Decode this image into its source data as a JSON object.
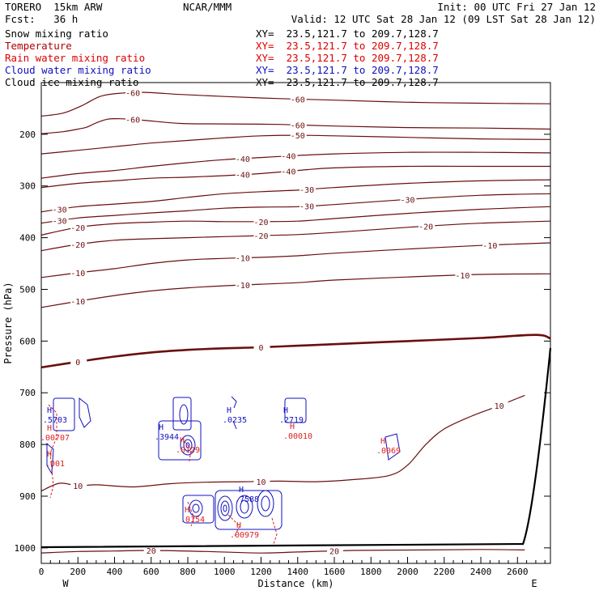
{
  "header": {
    "model": "TORERO  15km ARW",
    "center": "NCAR/MMM",
    "init": "Init: 00 UTC Fri 27 Jan 12",
    "fcst": "Fcst:   36 h",
    "valid": "Valid: 12 UTC Sat 28 Jan 12 (09 LST Sat 28 Jan 12)"
  },
  "legend": [
    {
      "name": "Snow mixing ratio",
      "xy": "XY=  23.5,121.7 to 209.7,128.7",
      "color": "#000000"
    },
    {
      "name": "Temperature",
      "xy": "XY=  23.5,121.7 to 209.7,128.7",
      "color": "#b00000"
    },
    {
      "name": "Rain water mixing ratio",
      "xy": "XY=  23.5,121.7 to 209.7,128.7",
      "color": "#dd0000"
    },
    {
      "name": "Cloud water mixing ratio",
      "xy": "XY=  23.5,121.7 to 209.7,128.7",
      "color": "#1010c0"
    },
    {
      "name": "Cloud ice mixing ratio",
      "xy": "XY=  23.5,121.7 to 209.7,128.7",
      "color": "#000000"
    }
  ],
  "chart_data": {
    "type": "contour",
    "xlabel": "Distance (km)",
    "ylabel": "Pressure (hPa)",
    "xlim": [
      0,
      2780
    ],
    "ylim": [
      1030,
      100
    ],
    "xticks": [
      0,
      200,
      400,
      600,
      800,
      1000,
      1200,
      1400,
      1600,
      1800,
      2000,
      2200,
      2400,
      2600
    ],
    "yticks": [
      200,
      300,
      400,
      500,
      600,
      700,
      800,
      900,
      1000
    ],
    "left_end_label": "W",
    "right_end_label": "E",
    "temperature_contours": [
      {
        "level": -60,
        "points": [
          [
            0,
            165
          ],
          [
            120,
            159
          ],
          [
            220,
            145
          ],
          [
            320,
            127
          ],
          [
            420,
            121
          ],
          [
            560,
            119
          ],
          [
            760,
            123
          ],
          [
            1000,
            127
          ],
          [
            1300,
            131
          ],
          [
            1600,
            134
          ],
          [
            2000,
            138
          ],
          [
            2400,
            140
          ],
          [
            2780,
            141
          ]
        ]
      },
      {
        "level": -60,
        "points": [
          [
            0,
            199
          ],
          [
            120,
            195
          ],
          [
            200,
            190
          ],
          [
            250,
            186
          ],
          [
            300,
            178
          ],
          [
            360,
            171
          ],
          [
            430,
            170
          ],
          [
            560,
            173
          ],
          [
            760,
            179
          ],
          [
            1000,
            180
          ],
          [
            1300,
            181
          ],
          [
            1600,
            184
          ],
          [
            2000,
            187
          ],
          [
            2400,
            188
          ],
          [
            2780,
            190
          ]
        ]
      },
      {
        "level": -50,
        "points": [
          [
            0,
            238
          ],
          [
            200,
            231
          ],
          [
            400,
            224
          ],
          [
            600,
            217
          ],
          [
            800,
            212
          ],
          [
            1000,
            207
          ],
          [
            1200,
            203
          ],
          [
            1400,
            202
          ],
          [
            1600,
            203
          ],
          [
            2000,
            206
          ],
          [
            2400,
            209
          ],
          [
            2780,
            210
          ]
        ]
      },
      {
        "level": -40,
        "points": [
          [
            0,
            285
          ],
          [
            200,
            276
          ],
          [
            400,
            270
          ],
          [
            600,
            262
          ],
          [
            800,
            255
          ],
          [
            1000,
            249
          ],
          [
            1200,
            245
          ],
          [
            1400,
            241
          ],
          [
            1600,
            238
          ],
          [
            2000,
            235
          ],
          [
            2400,
            235
          ],
          [
            2780,
            236
          ]
        ]
      },
      {
        "level": -40,
        "points": [
          [
            0,
            303
          ],
          [
            200,
            295
          ],
          [
            400,
            290
          ],
          [
            600,
            285
          ],
          [
            800,
            283
          ],
          [
            1000,
            280
          ],
          [
            1200,
            276
          ],
          [
            1400,
            270
          ],
          [
            1600,
            265
          ],
          [
            2000,
            262
          ],
          [
            2400,
            262
          ],
          [
            2780,
            262
          ]
        ]
      },
      {
        "level": -30,
        "points": [
          [
            0,
            350
          ],
          [
            200,
            340
          ],
          [
            400,
            335
          ],
          [
            600,
            330
          ],
          [
            800,
            322
          ],
          [
            1000,
            315
          ],
          [
            1200,
            311
          ],
          [
            1400,
            308
          ],
          [
            1600,
            303
          ],
          [
            2000,
            295
          ],
          [
            2400,
            290
          ],
          [
            2780,
            288
          ]
        ]
      },
      {
        "level": -30,
        "points": [
          [
            0,
            372
          ],
          [
            200,
            362
          ],
          [
            400,
            357
          ],
          [
            600,
            352
          ],
          [
            800,
            348
          ],
          [
            1000,
            343
          ],
          [
            1200,
            341
          ],
          [
            1400,
            340
          ],
          [
            1600,
            336
          ],
          [
            2000,
            326
          ],
          [
            2400,
            318
          ],
          [
            2780,
            315
          ]
        ]
      },
      {
        "level": -20,
        "points": [
          [
            0,
            395
          ],
          [
            200,
            380
          ],
          [
            400,
            373
          ],
          [
            600,
            370
          ],
          [
            800,
            368
          ],
          [
            1000,
            369
          ],
          [
            1200,
            369
          ],
          [
            1400,
            368
          ],
          [
            1600,
            363
          ],
          [
            2000,
            353
          ],
          [
            2400,
            345
          ],
          [
            2780,
            340
          ]
        ]
      },
      {
        "level": -20,
        "points": [
          [
            0,
            425
          ],
          [
            200,
            413
          ],
          [
            400,
            405
          ],
          [
            600,
            402
          ],
          [
            800,
            400
          ],
          [
            1000,
            398
          ],
          [
            1200,
            396
          ],
          [
            1400,
            394
          ],
          [
            1600,
            390
          ],
          [
            2000,
            380
          ],
          [
            2400,
            372
          ],
          [
            2780,
            368
          ]
        ]
      },
      {
        "level": -10,
        "points": [
          [
            0,
            477
          ],
          [
            200,
            468
          ],
          [
            400,
            460
          ],
          [
            600,
            450
          ],
          [
            800,
            443
          ],
          [
            1000,
            440
          ],
          [
            1200,
            438
          ],
          [
            1400,
            435
          ],
          [
            1600,
            430
          ],
          [
            2000,
            422
          ],
          [
            2400,
            415
          ],
          [
            2780,
            410
          ]
        ]
      },
      {
        "level": -10,
        "points": [
          [
            0,
            535
          ],
          [
            200,
            523
          ],
          [
            400,
            512
          ],
          [
            600,
            503
          ],
          [
            800,
            497
          ],
          [
            1000,
            493
          ],
          [
            1200,
            490
          ],
          [
            1400,
            487
          ],
          [
            1600,
            482
          ],
          [
            2000,
            476
          ],
          [
            2400,
            471
          ],
          [
            2780,
            470
          ]
        ]
      },
      {
        "level": 0,
        "points": [
          [
            0,
            651
          ],
          [
            200,
            640
          ],
          [
            400,
            630
          ],
          [
            600,
            622
          ],
          [
            800,
            617
          ],
          [
            1000,
            614
          ],
          [
            1200,
            612
          ],
          [
            1400,
            609
          ],
          [
            1600,
            606
          ],
          [
            2000,
            600
          ],
          [
            2400,
            594
          ],
          [
            2700,
            588
          ],
          [
            2780,
            595
          ]
        ]
      },
      {
        "level": 10,
        "points": [
          [
            0,
            890
          ],
          [
            100,
            875
          ],
          [
            200,
            880
          ],
          [
            300,
            878
          ],
          [
            500,
            882
          ],
          [
            700,
            876
          ],
          [
            900,
            873
          ],
          [
            1100,
            872
          ],
          [
            1300,
            871
          ],
          [
            1500,
            872
          ],
          [
            1700,
            868
          ],
          [
            1900,
            860
          ],
          [
            2000,
            840
          ],
          [
            2100,
            800
          ],
          [
            2200,
            770
          ],
          [
            2350,
            745
          ],
          [
            2500,
            725
          ],
          [
            2640,
            705
          ]
        ]
      },
      {
        "level": 20,
        "points": [
          [
            0,
            1010
          ],
          [
            200,
            1007
          ],
          [
            400,
            1006
          ],
          [
            600,
            1005
          ],
          [
            900,
            1007
          ],
          [
            1200,
            1010
          ],
          [
            1400,
            1008
          ],
          [
            1700,
            1005
          ],
          [
            2100,
            1004
          ],
          [
            2400,
            1003
          ],
          [
            2640,
            1004
          ]
        ]
      }
    ],
    "series_notes": [
      {
        "name": "Cloud water mixing ratio",
        "max_labels": [
          ".5703",
          ".3944",
          ".0235",
          ".2719",
          ".7588"
        ]
      },
      {
        "name": "Rain water mixing ratio",
        "max_labels": [
          ".00707",
          ".001",
          ".0129",
          ".00010",
          ".0069",
          ".0154",
          ".00979"
        ]
      }
    ]
  }
}
